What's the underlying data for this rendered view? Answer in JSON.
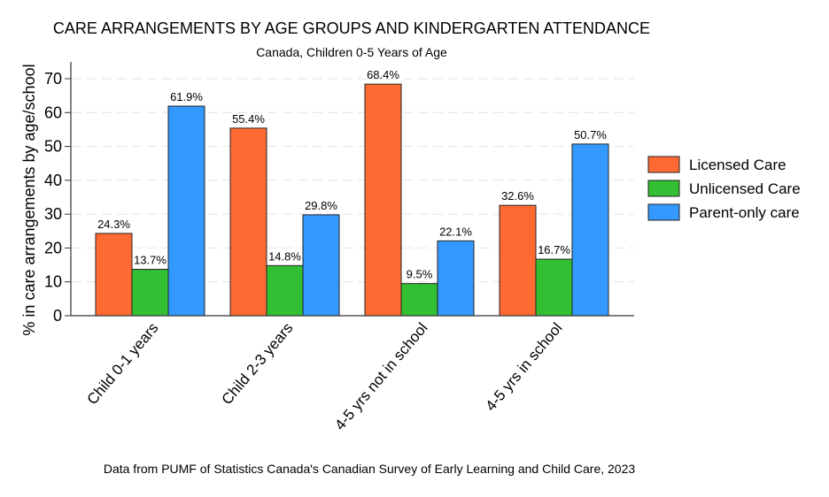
{
  "chart_data": {
    "type": "bar",
    "title": "CARE ARRANGEMENTS BY AGE GROUPS AND KINDERGARTEN ATTENDANCE",
    "subtitle": "Canada, Children 0-5 Years of Age",
    "xlabel": "",
    "ylabel": "% in care arrangements by age/school",
    "ylim": [
      0,
      75
    ],
    "yticks": [
      0,
      10,
      20,
      30,
      40,
      50,
      60,
      70
    ],
    "grid": true,
    "legend_position": "right",
    "categories": [
      "Child 0-1 years",
      "Child 2-3 years",
      "4-5 yrs not in school",
      "4-5 yrs in school"
    ],
    "series": [
      {
        "name": "Licensed Care",
        "color": "#ff6a33",
        "values": [
          24.3,
          55.4,
          68.4,
          32.6
        ],
        "labels": [
          "24.3%",
          "55.4%",
          "68.4%",
          "32.6%"
        ]
      },
      {
        "name": "Unlicensed Care",
        "color": "#33bf33",
        "values": [
          13.7,
          14.8,
          9.5,
          16.7
        ],
        "labels": [
          "13.7%",
          "14.8%",
          "9.5%",
          "16.7%"
        ]
      },
      {
        "name": "Parent-only care",
        "color": "#3399ff",
        "values": [
          61.9,
          29.8,
          22.1,
          50.7
        ],
        "labels": [
          "61.9%",
          "29.8%",
          "22.1%",
          "50.7%"
        ]
      }
    ],
    "note": "Data from PUMF of Statistics Canada's Canadian Survey of Early Learning and Child Care, 2023"
  }
}
